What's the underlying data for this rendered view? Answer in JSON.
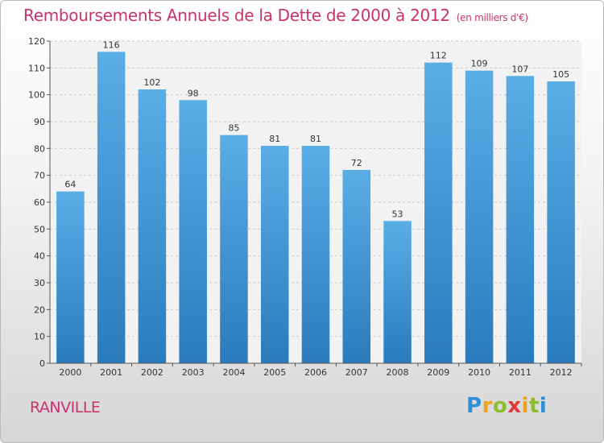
{
  "chart_data": {
    "type": "bar",
    "title": "Remboursements Annuels de la Dette de 2000 à 2012",
    "subtitle": "(en milliers d'€)",
    "categories": [
      "2000",
      "2001",
      "2002",
      "2003",
      "2004",
      "2005",
      "2006",
      "2007",
      "2008",
      "2009",
      "2010",
      "2011",
      "2012"
    ],
    "values": [
      64,
      116,
      102,
      98,
      85,
      81,
      81,
      72,
      53,
      112,
      109,
      107,
      105
    ],
    "ylim": [
      0,
      120
    ],
    "yticks": [
      0,
      10,
      20,
      30,
      40,
      50,
      60,
      70,
      80,
      90,
      100,
      110,
      120
    ],
    "xlabel": "",
    "ylabel": "",
    "grid": true
  },
  "location": "RANVILLE",
  "logo": {
    "letters": [
      "P",
      "r",
      "o",
      "x",
      "i",
      "t",
      "i"
    ]
  },
  "colors": {
    "accent": "#c8336e",
    "bar_top": "#5aaee6",
    "bar_bottom": "#2a7bbd",
    "grid": "#cccccc"
  }
}
